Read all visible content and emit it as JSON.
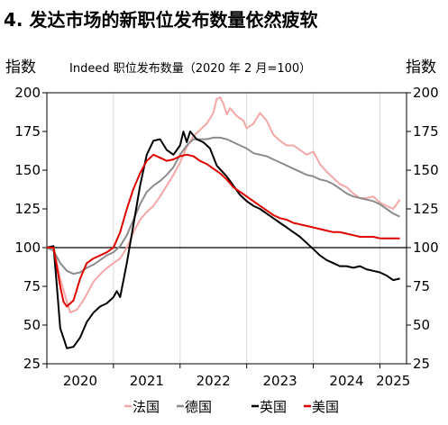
{
  "title": "4. 发达市场的新职位发布数量依然疲软",
  "chart_data": {
    "type": "line",
    "subtitle": "Indeed 职位发布数量（2020 年 2 月=100）",
    "ylabel_left": "指数",
    "ylabel_right": "指数",
    "ylim": [
      25,
      200
    ],
    "yticks": [
      25,
      50,
      75,
      100,
      125,
      150,
      175,
      200
    ],
    "xlim": [
      2020.0,
      2025.4
    ],
    "xtick_labels": [
      {
        "label": "2020",
        "x": 2020.5
      },
      {
        "label": "2021",
        "x": 2021.5
      },
      {
        "label": "2022",
        "x": 2022.5
      },
      {
        "label": "2023",
        "x": 2023.5
      },
      {
        "label": "2024",
        "x": 2024.5
      },
      {
        "label": "2025",
        "x": 2025.2
      }
    ],
    "xgrid_years": [
      2021,
      2022,
      2023,
      2024,
      2025
    ],
    "reference_line": 100,
    "series": [
      {
        "name": "法国",
        "color": "#f4a7a7",
        "legend_prefix": "–",
        "points": [
          [
            2020.0,
            100
          ],
          [
            2020.1,
            101
          ],
          [
            2020.2,
            80
          ],
          [
            2020.3,
            65
          ],
          [
            2020.35,
            58
          ],
          [
            2020.45,
            60
          ],
          [
            2020.55,
            66
          ],
          [
            2020.7,
            78
          ],
          [
            2020.85,
            85
          ],
          [
            2021.0,
            90
          ],
          [
            2021.1,
            93
          ],
          [
            2021.2,
            100
          ],
          [
            2021.3,
            110
          ],
          [
            2021.4,
            118
          ],
          [
            2021.5,
            123
          ],
          [
            2021.6,
            127
          ],
          [
            2021.7,
            133
          ],
          [
            2021.8,
            140
          ],
          [
            2021.9,
            147
          ],
          [
            2022.0,
            155
          ],
          [
            2022.1,
            165
          ],
          [
            2022.2,
            172
          ],
          [
            2022.3,
            176
          ],
          [
            2022.4,
            180
          ],
          [
            2022.5,
            187
          ],
          [
            2022.55,
            196
          ],
          [
            2022.6,
            197
          ],
          [
            2022.65,
            193
          ],
          [
            2022.7,
            186
          ],
          [
            2022.75,
            190
          ],
          [
            2022.85,
            185
          ],
          [
            2022.95,
            182
          ],
          [
            2023.0,
            177
          ],
          [
            2023.1,
            180
          ],
          [
            2023.2,
            187
          ],
          [
            2023.3,
            182
          ],
          [
            2023.4,
            173
          ],
          [
            2023.5,
            169
          ],
          [
            2023.6,
            166
          ],
          [
            2023.7,
            166
          ],
          [
            2023.8,
            163
          ],
          [
            2023.9,
            160
          ],
          [
            2024.0,
            162
          ],
          [
            2024.1,
            154
          ],
          [
            2024.2,
            149
          ],
          [
            2024.3,
            145
          ],
          [
            2024.4,
            141
          ],
          [
            2024.5,
            139
          ],
          [
            2024.6,
            135
          ],
          [
            2024.7,
            132
          ],
          [
            2024.8,
            132
          ],
          [
            2024.9,
            133
          ],
          [
            2025.0,
            129
          ],
          [
            2025.1,
            127
          ],
          [
            2025.2,
            125
          ],
          [
            2025.3,
            131
          ]
        ]
      },
      {
        "name": "德国",
        "color": "#8c8c8c",
        "legend_prefix": "–",
        "points": [
          [
            2020.0,
            100
          ],
          [
            2020.1,
            98
          ],
          [
            2020.2,
            90
          ],
          [
            2020.3,
            85
          ],
          [
            2020.4,
            83
          ],
          [
            2020.5,
            84
          ],
          [
            2020.6,
            87
          ],
          [
            2020.7,
            89
          ],
          [
            2020.8,
            92
          ],
          [
            2020.9,
            95
          ],
          [
            2021.0,
            97
          ],
          [
            2021.1,
            101
          ],
          [
            2021.2,
            108
          ],
          [
            2021.3,
            118
          ],
          [
            2021.4,
            128
          ],
          [
            2021.5,
            136
          ],
          [
            2021.6,
            140
          ],
          [
            2021.7,
            143
          ],
          [
            2021.8,
            147
          ],
          [
            2021.9,
            152
          ],
          [
            2022.0,
            160
          ],
          [
            2022.1,
            166
          ],
          [
            2022.2,
            170
          ],
          [
            2022.3,
            170
          ],
          [
            2022.4,
            170
          ],
          [
            2022.5,
            171
          ],
          [
            2022.6,
            171
          ],
          [
            2022.7,
            170
          ],
          [
            2022.8,
            168
          ],
          [
            2022.9,
            166
          ],
          [
            2023.0,
            164
          ],
          [
            2023.1,
            161
          ],
          [
            2023.2,
            160
          ],
          [
            2023.3,
            159
          ],
          [
            2023.4,
            157
          ],
          [
            2023.5,
            155
          ],
          [
            2023.6,
            153
          ],
          [
            2023.7,
            151
          ],
          [
            2023.8,
            149
          ],
          [
            2023.9,
            147
          ],
          [
            2024.0,
            146
          ],
          [
            2024.1,
            144
          ],
          [
            2024.2,
            143
          ],
          [
            2024.3,
            141
          ],
          [
            2024.4,
            138
          ],
          [
            2024.5,
            135
          ],
          [
            2024.6,
            133
          ],
          [
            2024.7,
            132
          ],
          [
            2024.8,
            131
          ],
          [
            2024.9,
            130
          ],
          [
            2025.0,
            128
          ],
          [
            2025.1,
            125
          ],
          [
            2025.2,
            122
          ],
          [
            2025.3,
            120
          ]
        ]
      },
      {
        "name": "英国",
        "color": "#000000",
        "legend_prefix": "–",
        "points": [
          [
            2020.0,
            100
          ],
          [
            2020.1,
            101
          ],
          [
            2020.15,
            75
          ],
          [
            2020.2,
            48
          ],
          [
            2020.3,
            35
          ],
          [
            2020.4,
            36
          ],
          [
            2020.5,
            42
          ],
          [
            2020.6,
            52
          ],
          [
            2020.7,
            58
          ],
          [
            2020.8,
            62
          ],
          [
            2020.9,
            64
          ],
          [
            2021.0,
            68
          ],
          [
            2021.05,
            72
          ],
          [
            2021.1,
            68
          ],
          [
            2021.2,
            90
          ],
          [
            2021.3,
            115
          ],
          [
            2021.4,
            140
          ],
          [
            2021.5,
            160
          ],
          [
            2021.6,
            169
          ],
          [
            2021.7,
            170
          ],
          [
            2021.8,
            163
          ],
          [
            2021.9,
            160
          ],
          [
            2022.0,
            166
          ],
          [
            2022.05,
            175
          ],
          [
            2022.1,
            168
          ],
          [
            2022.15,
            175
          ],
          [
            2022.25,
            170
          ],
          [
            2022.35,
            168
          ],
          [
            2022.45,
            164
          ],
          [
            2022.55,
            153
          ],
          [
            2022.7,
            146
          ],
          [
            2022.8,
            140
          ],
          [
            2022.9,
            134
          ],
          [
            2023.0,
            130
          ],
          [
            2023.1,
            127
          ],
          [
            2023.2,
            125
          ],
          [
            2023.3,
            122
          ],
          [
            2023.4,
            119
          ],
          [
            2023.5,
            116
          ],
          [
            2023.6,
            113
          ],
          [
            2023.7,
            110
          ],
          [
            2023.8,
            107
          ],
          [
            2023.9,
            103
          ],
          [
            2024.0,
            99
          ],
          [
            2024.1,
            95
          ],
          [
            2024.2,
            92
          ],
          [
            2024.3,
            90
          ],
          [
            2024.4,
            88
          ],
          [
            2024.5,
            88
          ],
          [
            2024.6,
            87
          ],
          [
            2024.7,
            88
          ],
          [
            2024.8,
            86
          ],
          [
            2024.9,
            85
          ],
          [
            2025.0,
            84
          ],
          [
            2025.1,
            82
          ],
          [
            2025.2,
            79
          ],
          [
            2025.3,
            80
          ]
        ]
      },
      {
        "name": "美国",
        "color": "#e00000",
        "legend_prefix": "–",
        "points": [
          [
            2020.0,
            100
          ],
          [
            2020.1,
            100
          ],
          [
            2020.2,
            75
          ],
          [
            2020.25,
            65
          ],
          [
            2020.3,
            62
          ],
          [
            2020.4,
            66
          ],
          [
            2020.5,
            80
          ],
          [
            2020.6,
            90
          ],
          [
            2020.7,
            93
          ],
          [
            2020.8,
            95
          ],
          [
            2020.9,
            97
          ],
          [
            2021.0,
            100
          ],
          [
            2021.1,
            110
          ],
          [
            2021.2,
            125
          ],
          [
            2021.3,
            138
          ],
          [
            2021.4,
            148
          ],
          [
            2021.5,
            156
          ],
          [
            2021.6,
            160
          ],
          [
            2021.7,
            158
          ],
          [
            2021.8,
            156
          ],
          [
            2021.9,
            157
          ],
          [
            2022.0,
            159
          ],
          [
            2022.1,
            160
          ],
          [
            2022.2,
            159
          ],
          [
            2022.3,
            156
          ],
          [
            2022.4,
            154
          ],
          [
            2022.5,
            151
          ],
          [
            2022.6,
            148
          ],
          [
            2022.7,
            144
          ],
          [
            2022.8,
            139
          ],
          [
            2022.9,
            136
          ],
          [
            2023.0,
            133
          ],
          [
            2023.1,
            130
          ],
          [
            2023.2,
            127
          ],
          [
            2023.3,
            124
          ],
          [
            2023.4,
            121
          ],
          [
            2023.5,
            119
          ],
          [
            2023.6,
            118
          ],
          [
            2023.7,
            116
          ],
          [
            2023.8,
            115
          ],
          [
            2023.9,
            114
          ],
          [
            2024.0,
            113
          ],
          [
            2024.1,
            112
          ],
          [
            2024.2,
            111
          ],
          [
            2024.3,
            110
          ],
          [
            2024.4,
            110
          ],
          [
            2024.5,
            109
          ],
          [
            2024.6,
            108
          ],
          [
            2024.7,
            107
          ],
          [
            2024.8,
            107
          ],
          [
            2024.9,
            107
          ],
          [
            2025.0,
            106
          ],
          [
            2025.1,
            106
          ],
          [
            2025.2,
            106
          ],
          [
            2025.3,
            106
          ]
        ]
      }
    ]
  }
}
